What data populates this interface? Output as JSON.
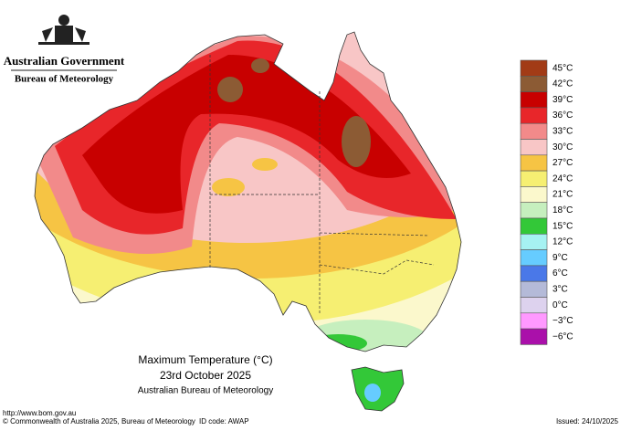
{
  "header": {
    "government": "Australian Government",
    "bureau": "Bureau of Meteorology"
  },
  "legend": {
    "items": [
      {
        "label": "45°C",
        "color": "#a23b16"
      },
      {
        "label": "42°C",
        "color": "#8c5b34"
      },
      {
        "label": "39°C",
        "color": "#c80000"
      },
      {
        "label": "36°C",
        "color": "#e8262a"
      },
      {
        "label": "33°C",
        "color": "#f28a8a"
      },
      {
        "label": "30°C",
        "color": "#f8c6c6"
      },
      {
        "label": "27°C",
        "color": "#f6c444"
      },
      {
        "label": "24°C",
        "color": "#f6ef72"
      },
      {
        "label": "21°C",
        "color": "#fbf8cc"
      },
      {
        "label": "18°C",
        "color": "#c6efbe"
      },
      {
        "label": "15°C",
        "color": "#33c838"
      },
      {
        "label": "12°C",
        "color": "#a6f2f2"
      },
      {
        "label": "9°C",
        "color": "#66ccff"
      },
      {
        "label": "6°C",
        "color": "#4a78e8"
      },
      {
        "label": "3°C",
        "color": "#b4bad8"
      },
      {
        "label": "0°C",
        "color": "#ddd2ee"
      },
      {
        "label": "−3°C",
        "color": "#ff99ff"
      },
      {
        "label": "−6°C",
        "color": "#aa10aa"
      }
    ]
  },
  "caption": {
    "title": "Maximum Temperature (°C)",
    "date": "23rd October 2025",
    "agency": "Australian Bureau of Meteorology"
  },
  "footer": {
    "url": "http://www.bom.gov.au",
    "copyright": "© Commonwealth of Australia 2025, Bureau of Meteorology",
    "id_code": "ID code: AWAP",
    "issued": "Issued: 24/10/2025"
  }
}
